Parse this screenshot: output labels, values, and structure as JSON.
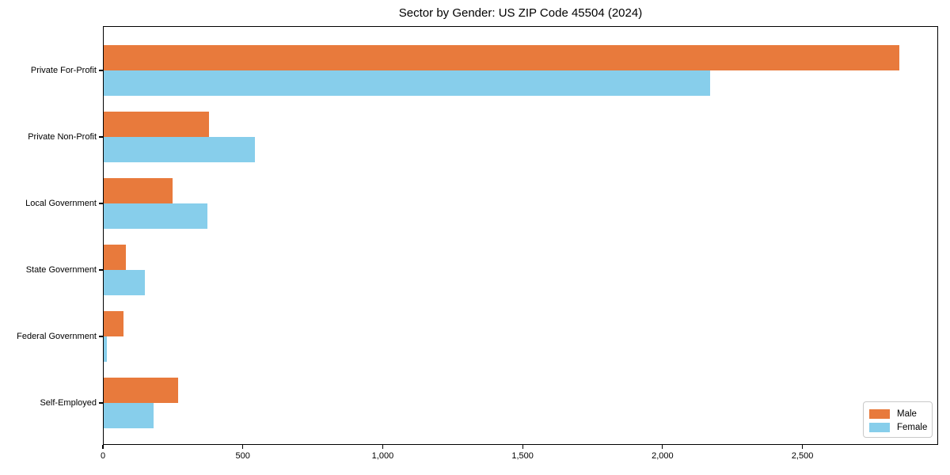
{
  "chart_data": {
    "type": "bar",
    "orientation": "horizontal",
    "title": "Sector by Gender: US ZIP Code 45504 (2024)",
    "categories": [
      "Private For-Profit",
      "Private Non-Profit",
      "Local Government",
      "State Government",
      "Federal Government",
      "Self-Employed"
    ],
    "series": [
      {
        "name": "Male",
        "color": "#e87a3c",
        "values": [
          2845,
          380,
          250,
          83,
          74,
          270
        ]
      },
      {
        "name": "Female",
        "color": "#87ceeb",
        "values": [
          2170,
          543,
          373,
          150,
          14,
          182
        ]
      }
    ],
    "xlim": [
      0,
      2985
    ],
    "xticks": [
      {
        "value": 0,
        "label": "0"
      },
      {
        "value": 500,
        "label": "500"
      },
      {
        "value": 1000,
        "label": "1,000"
      },
      {
        "value": 1500,
        "label": "1,500"
      },
      {
        "value": 2000,
        "label": "2,000"
      },
      {
        "value": 2500,
        "label": "2,500"
      }
    ],
    "xlabel": "",
    "ylabel": "",
    "grid": false,
    "legend_position": "lower right"
  },
  "colors": {
    "male": "#e87a3c",
    "female": "#87ceeb",
    "spine": "#000000",
    "legend_border": "#c9c9c9",
    "background": "#ffffff"
  }
}
